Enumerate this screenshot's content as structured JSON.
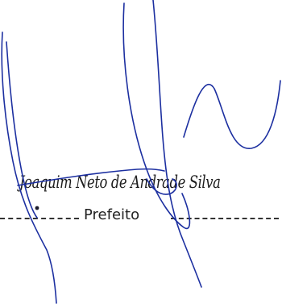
{
  "signature_block": {
    "name": "Joaquim Neto de Andrade Silva",
    "title": "Prefeito"
  },
  "colors": {
    "ink": "#1c2fa0",
    "text": "#222222",
    "background": "#ffffff"
  }
}
